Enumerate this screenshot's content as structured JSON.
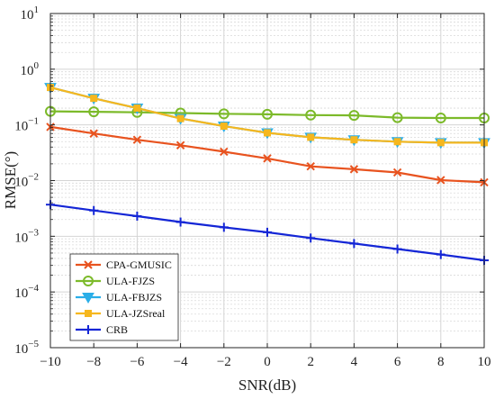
{
  "chart_data": {
    "type": "line",
    "x_scale": "linear",
    "y_scale": "log",
    "xlabel": "SNR(dB)",
    "ylabel": "RMSE(°)",
    "xlim": [
      -10,
      10
    ],
    "ylim": [
      1e-05,
      10
    ],
    "x_ticks": [
      "-10",
      "-8",
      "-6",
      "-4",
      "-2",
      "0",
      "2",
      "4",
      "6",
      "8",
      "10"
    ],
    "y_ticks": [
      {
        "base": "10",
        "exp": "-5"
      },
      {
        "base": "10",
        "exp": "-4"
      },
      {
        "base": "10",
        "exp": "-3"
      },
      {
        "base": "10",
        "exp": "-2"
      },
      {
        "base": "10",
        "exp": "-1"
      },
      {
        "base": "10",
        "exp": "0"
      },
      {
        "base": "10",
        "exp": "1"
      }
    ],
    "grid": true,
    "legend_position": "bottom-left",
    "x": [
      -10,
      -8,
      -6,
      -4,
      -2,
      0,
      2,
      4,
      6,
      8,
      10
    ],
    "series": [
      {
        "name": "CPA-GMUSIC",
        "color": "#e8531f",
        "marker": "x",
        "values": [
          0.092,
          0.07,
          0.054,
          0.043,
          0.033,
          0.025,
          0.018,
          0.016,
          0.014,
          0.0102,
          0.0093
        ]
      },
      {
        "name": "ULA-FJZS",
        "color": "#7cba2a",
        "marker": "circle",
        "values": [
          0.175,
          0.172,
          0.168,
          0.163,
          0.158,
          0.155,
          0.15,
          0.148,
          0.135,
          0.133,
          0.133
        ]
      },
      {
        "name": "ULA-FBJZS",
        "color": "#2aaee8",
        "marker": "triangle-down",
        "values": [
          0.47,
          0.3,
          0.2,
          0.13,
          0.095,
          0.072,
          0.06,
          0.054,
          0.05,
          0.048,
          0.048
        ]
      },
      {
        "name": "ULA-JZSreal",
        "color": "#f6b71e",
        "marker": "square",
        "values": [
          0.47,
          0.3,
          0.2,
          0.13,
          0.095,
          0.072,
          0.06,
          0.054,
          0.05,
          0.048,
          0.048
        ]
      },
      {
        "name": "CRB",
        "color": "#1426d6",
        "marker": "plus",
        "values": [
          0.0037,
          0.0029,
          0.0023,
          0.0018,
          0.00145,
          0.00118,
          0.00093,
          0.00074,
          0.00059,
          0.00047,
          0.00037
        ]
      }
    ]
  }
}
